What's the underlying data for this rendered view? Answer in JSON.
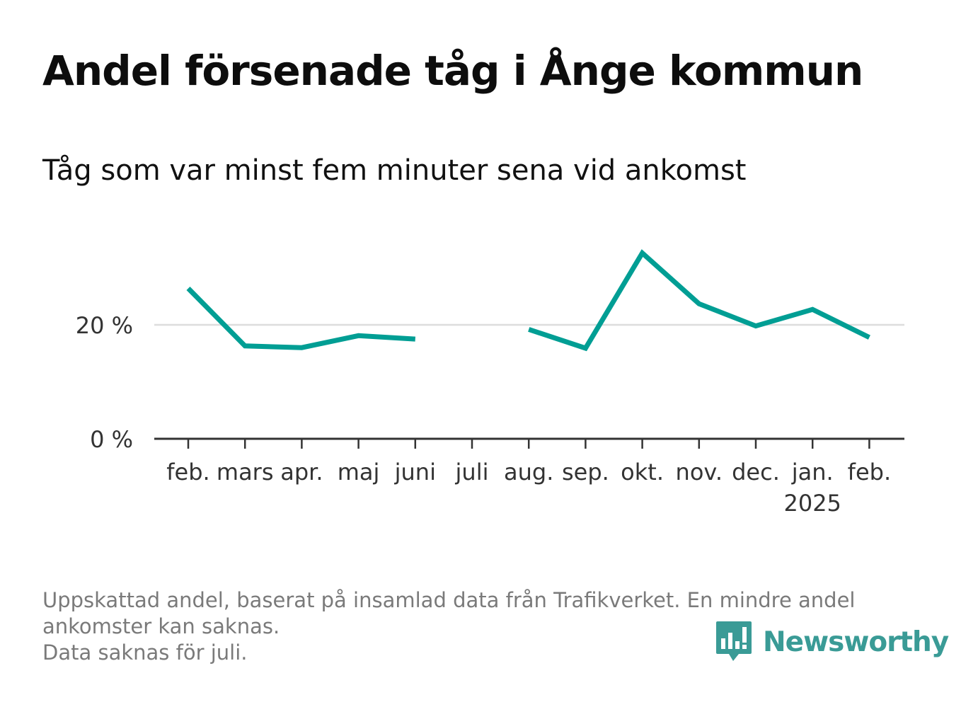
{
  "title": "Andel försenade tåg i Ånge kommun",
  "subtitle": "Tåg som var minst fem minuter sena vid ankomst",
  "caption": {
    "line1": "Uppskattad andel, baserat på insamlad data från Trafikverket. En mindre andel",
    "line2": "ankomster kan saknas.",
    "line3": "Data saknas för juli."
  },
  "brand": {
    "name": "Newsworthy",
    "icon": "bar-chart-bubble-icon"
  },
  "colors": {
    "line": "#009e94",
    "axis": "#333333",
    "grid": "#dddddd",
    "brand": "#3a9b96"
  },
  "chart_data": {
    "type": "line",
    "categories": [
      "feb.",
      "mars",
      "apr.",
      "maj",
      "juni",
      "juli",
      "aug.",
      "sep.",
      "okt.",
      "nov.",
      "dec.",
      "jan.",
      "feb."
    ],
    "year_label": "2025",
    "year_label_under": 11,
    "series": [
      {
        "values": [
          26.4,
          16.3,
          16.0,
          18.1,
          17.5,
          null,
          19.2,
          15.9,
          32.6,
          23.7,
          19.8,
          22.7,
          17.8
        ]
      }
    ],
    "yticks": [
      {
        "value": 0,
        "label": "0 %"
      },
      {
        "value": 20,
        "label": "20 %"
      }
    ],
    "ylim": [
      0,
      35
    ],
    "grid": true
  }
}
